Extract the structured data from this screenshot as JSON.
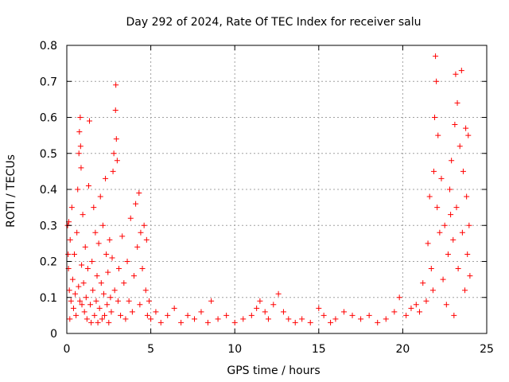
{
  "chart_data": {
    "type": "scatter",
    "title": "Day 292 of 2024, Rate Of TEC Index for receiver salu",
    "xlabel": "GPS time / hours",
    "ylabel": "ROTI / TECUs",
    "xlim": [
      0,
      25
    ],
    "ylim": [
      0,
      0.8
    ],
    "x_ticks": [
      0,
      5,
      10,
      15,
      20,
      25
    ],
    "x_tick_labels": [
      "0",
      "5",
      "10",
      "15",
      "20",
      "25"
    ],
    "y_ticks": [
      0,
      0.1,
      0.2,
      0.3,
      0.4,
      0.5,
      0.6,
      0.7,
      0.8
    ],
    "y_tick_labels": [
      "0",
      "0.1",
      "0.2",
      "0.3",
      "0.4",
      "0.5",
      "0.6",
      "0.7",
      "0.8"
    ],
    "grid": true,
    "marker": "+",
    "color": "#ff0000",
    "series": [
      {
        "name": "ROTI",
        "points": [
          [
            0.05,
            0.3
          ],
          [
            0.08,
            0.22
          ],
          [
            0.1,
            0.18
          ],
          [
            0.12,
            0.31
          ],
          [
            0.15,
            0.12
          ],
          [
            0.18,
            0.04
          ],
          [
            0.2,
            0.26
          ],
          [
            0.25,
            0.09
          ],
          [
            0.3,
            0.35
          ],
          [
            0.35,
            0.15
          ],
          [
            0.4,
            0.07
          ],
          [
            0.45,
            0.22
          ],
          [
            0.5,
            0.11
          ],
          [
            0.55,
            0.05
          ],
          [
            0.6,
            0.28
          ],
          [
            0.65,
            0.4
          ],
          [
            0.7,
            0.13
          ],
          [
            0.72,
            0.5
          ],
          [
            0.75,
            0.56
          ],
          [
            0.78,
            0.09
          ],
          [
            0.8,
            0.6
          ],
          [
            0.82,
            0.52
          ],
          [
            0.85,
            0.46
          ],
          [
            0.88,
            0.19
          ],
          [
            0.9,
            0.08
          ],
          [
            0.95,
            0.33
          ],
          [
            1.0,
            0.14
          ],
          [
            1.05,
            0.06
          ],
          [
            1.1,
            0.24
          ],
          [
            1.15,
            0.1
          ],
          [
            1.2,
            0.04
          ],
          [
            1.25,
            0.18
          ],
          [
            1.3,
            0.41
          ],
          [
            1.35,
            0.59
          ],
          [
            1.4,
            0.08
          ],
          [
            1.45,
            0.03
          ],
          [
            1.5,
            0.2
          ],
          [
            1.55,
            0.12
          ],
          [
            1.6,
            0.35
          ],
          [
            1.65,
            0.05
          ],
          [
            1.7,
            0.28
          ],
          [
            1.75,
            0.09
          ],
          [
            1.8,
            0.16
          ],
          [
            1.85,
            0.03
          ],
          [
            1.9,
            0.25
          ],
          [
            1.95,
            0.07
          ],
          [
            2.0,
            0.38
          ],
          [
            2.05,
            0.14
          ],
          [
            2.1,
            0.04
          ],
          [
            2.15,
            0.3
          ],
          [
            2.2,
            0.11
          ],
          [
            2.25,
            0.05
          ],
          [
            2.3,
            0.43
          ],
          [
            2.35,
            0.22
          ],
          [
            2.4,
            0.08
          ],
          [
            2.45,
            0.17
          ],
          [
            2.5,
            0.03
          ],
          [
            2.55,
            0.26
          ],
          [
            2.6,
            0.1
          ],
          [
            2.65,
            0.06
          ],
          [
            2.7,
            0.21
          ],
          [
            2.75,
            0.45
          ],
          [
            2.8,
            0.5
          ],
          [
            2.85,
            0.12
          ],
          [
            2.9,
            0.62
          ],
          [
            2.92,
            0.69
          ],
          [
            2.95,
            0.54
          ],
          [
            3.0,
            0.48
          ],
          [
            3.05,
            0.09
          ],
          [
            3.1,
            0.18
          ],
          [
            3.2,
            0.05
          ],
          [
            3.3,
            0.27
          ],
          [
            3.4,
            0.14
          ],
          [
            3.5,
            0.04
          ],
          [
            3.6,
            0.2
          ],
          [
            3.7,
            0.09
          ],
          [
            3.8,
            0.32
          ],
          [
            3.9,
            0.06
          ],
          [
            4.0,
            0.16
          ],
          [
            4.1,
            0.36
          ],
          [
            4.2,
            0.24
          ],
          [
            4.3,
            0.39
          ],
          [
            4.35,
            0.08
          ],
          [
            4.4,
            0.28
          ],
          [
            4.5,
            0.18
          ],
          [
            4.6,
            0.3
          ],
          [
            4.7,
            0.12
          ],
          [
            4.75,
            0.26
          ],
          [
            4.8,
            0.05
          ],
          [
            4.9,
            0.09
          ],
          [
            5.0,
            0.04
          ],
          [
            5.3,
            0.06
          ],
          [
            5.6,
            0.03
          ],
          [
            6.0,
            0.05
          ],
          [
            6.4,
            0.07
          ],
          [
            6.8,
            0.03
          ],
          [
            7.2,
            0.05
          ],
          [
            7.6,
            0.04
          ],
          [
            8.0,
            0.06
          ],
          [
            8.4,
            0.03
          ],
          [
            8.6,
            0.09
          ],
          [
            9.0,
            0.04
          ],
          [
            9.5,
            0.05
          ],
          [
            10.0,
            0.03
          ],
          [
            10.5,
            0.04
          ],
          [
            11.0,
            0.05
          ],
          [
            11.3,
            0.07
          ],
          [
            11.5,
            0.09
          ],
          [
            11.8,
            0.06
          ],
          [
            12.0,
            0.04
          ],
          [
            12.3,
            0.08
          ],
          [
            12.6,
            0.11
          ],
          [
            12.9,
            0.06
          ],
          [
            13.2,
            0.04
          ],
          [
            13.6,
            0.03
          ],
          [
            14.0,
            0.04
          ],
          [
            14.5,
            0.03
          ],
          [
            15.0,
            0.07
          ],
          [
            15.3,
            0.05
          ],
          [
            15.7,
            0.03
          ],
          [
            16.0,
            0.04
          ],
          [
            16.5,
            0.06
          ],
          [
            17.0,
            0.05
          ],
          [
            17.5,
            0.04
          ],
          [
            18.0,
            0.05
          ],
          [
            18.5,
            0.03
          ],
          [
            19.0,
            0.04
          ],
          [
            19.5,
            0.06
          ],
          [
            19.8,
            0.1
          ],
          [
            20.2,
            0.05
          ],
          [
            20.5,
            0.07
          ],
          [
            20.8,
            0.08
          ],
          [
            21.0,
            0.06
          ],
          [
            21.2,
            0.14
          ],
          [
            21.4,
            0.09
          ],
          [
            21.5,
            0.25
          ],
          [
            21.6,
            0.38
          ],
          [
            21.7,
            0.18
          ],
          [
            21.8,
            0.12
          ],
          [
            21.85,
            0.45
          ],
          [
            21.9,
            0.6
          ],
          [
            21.95,
            0.77
          ],
          [
            22.0,
            0.7
          ],
          [
            22.05,
            0.35
          ],
          [
            22.1,
            0.55
          ],
          [
            22.2,
            0.28
          ],
          [
            22.3,
            0.43
          ],
          [
            22.4,
            0.15
          ],
          [
            22.5,
            0.3
          ],
          [
            22.6,
            0.08
          ],
          [
            22.7,
            0.22
          ],
          [
            22.8,
            0.4
          ],
          [
            22.85,
            0.33
          ],
          [
            22.9,
            0.48
          ],
          [
            23.0,
            0.26
          ],
          [
            23.05,
            0.05
          ],
          [
            23.1,
            0.58
          ],
          [
            23.15,
            0.72
          ],
          [
            23.2,
            0.35
          ],
          [
            23.25,
            0.64
          ],
          [
            23.3,
            0.18
          ],
          [
            23.4,
            0.52
          ],
          [
            23.5,
            0.73
          ],
          [
            23.55,
            0.28
          ],
          [
            23.6,
            0.45
          ],
          [
            23.7,
            0.12
          ],
          [
            23.75,
            0.57
          ],
          [
            23.8,
            0.38
          ],
          [
            23.85,
            0.22
          ],
          [
            23.9,
            0.55
          ],
          [
            23.95,
            0.3
          ],
          [
            24.0,
            0.16
          ]
        ]
      }
    ]
  }
}
